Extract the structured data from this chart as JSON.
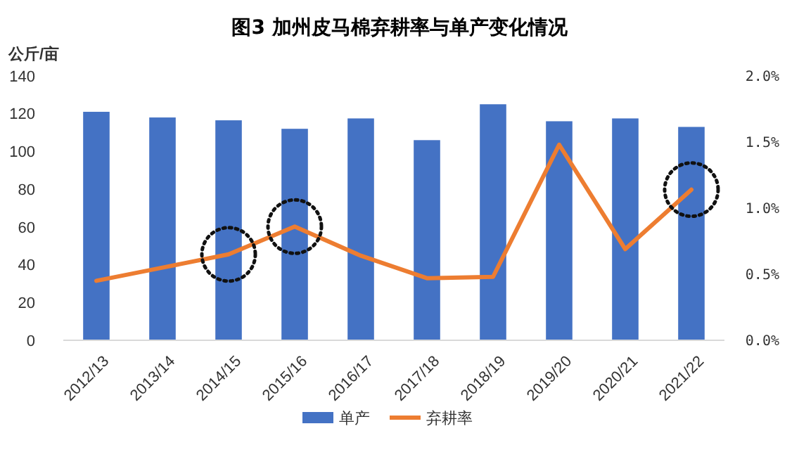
{
  "chart_data": {
    "type": "bar",
    "title": "图3 加州皮马棉弃耕率与单产变化情况",
    "ylabel": "公斤/亩",
    "categories": [
      "2012/13",
      "2013/14",
      "2014/15",
      "2015/16",
      "2016/17",
      "2017/18",
      "2018/19",
      "2019/20",
      "2020/21",
      "2021/22"
    ],
    "series": [
      {
        "name": "单产",
        "color": "#4472c4",
        "values": [
          121,
          118,
          116.5,
          112,
          117.5,
          106,
          125,
          116,
          117.5,
          113
        ]
      },
      {
        "name": "弃耕率",
        "type": "line",
        "axis": "y2",
        "color": "#ed7d31",
        "values": [
          0.45,
          0.55,
          0.65,
          0.86,
          0.64,
          0.47,
          0.48,
          1.48,
          0.69,
          1.14
        ]
      }
    ],
    "ylim": [
      0,
      140
    ],
    "yticks": [
      0,
      20,
      40,
      60,
      80,
      100,
      120,
      140
    ],
    "y2lim": [
      0,
      2.0
    ],
    "y2ticks": [
      {
        "value": 0,
        "label": "0.0%"
      },
      {
        "value": 0.5,
        "label": "0.5%"
      },
      {
        "value": 1.0,
        "label": "1.0%"
      },
      {
        "value": 1.5,
        "label": "1.5%"
      },
      {
        "value": 2.0,
        "label": "2.0%"
      }
    ],
    "legend": "bottom",
    "marker": "none"
  }
}
